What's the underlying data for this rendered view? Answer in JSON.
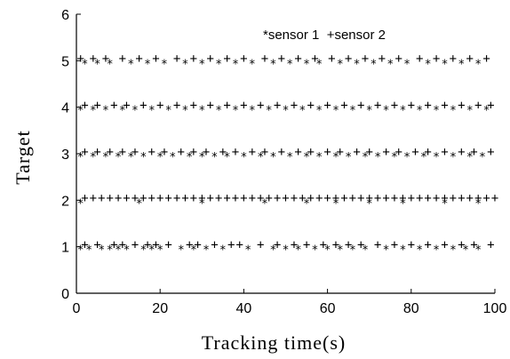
{
  "chart_data": {
    "type": "scatter",
    "xlabel": "Tracking time(s)",
    "ylabel": "Target",
    "xlim": [
      0,
      100
    ],
    "ylim": [
      0,
      6
    ],
    "x_ticks": [
      "0",
      "20",
      "40",
      "60",
      "80",
      "100"
    ],
    "y_ticks": [
      "0",
      "1",
      "2",
      "3",
      "4",
      "5",
      "6"
    ],
    "grid": false,
    "legend_text": "*sensor 1  +sensor 2",
    "legend_position": "top-right",
    "series": [
      {
        "name": "sensor 1",
        "marker": "*",
        "points": [
          [
            1,
            1
          ],
          [
            3,
            1
          ],
          [
            6,
            1
          ],
          [
            8,
            1
          ],
          [
            10,
            1
          ],
          [
            12,
            1
          ],
          [
            16,
            1
          ],
          [
            18,
            1
          ],
          [
            20,
            1
          ],
          [
            25,
            1
          ],
          [
            28,
            1
          ],
          [
            31,
            1
          ],
          [
            35,
            1
          ],
          [
            41,
            1
          ],
          [
            47,
            1
          ],
          [
            50,
            1
          ],
          [
            53,
            1
          ],
          [
            57,
            1
          ],
          [
            60,
            1
          ],
          [
            63,
            1
          ],
          [
            66,
            1
          ],
          [
            69,
            1
          ],
          [
            74,
            1
          ],
          [
            78,
            1
          ],
          [
            82,
            1
          ],
          [
            86,
            1
          ],
          [
            90,
            1
          ],
          [
            93,
            1
          ],
          [
            96,
            1
          ],
          [
            1,
            2
          ],
          [
            15,
            2
          ],
          [
            30,
            2
          ],
          [
            45,
            2
          ],
          [
            55,
            2
          ],
          [
            62,
            2
          ],
          [
            70,
            2
          ],
          [
            78,
            2
          ],
          [
            88,
            2
          ],
          [
            96,
            2
          ],
          [
            1,
            3
          ],
          [
            4,
            3
          ],
          [
            7,
            3
          ],
          [
            10,
            3
          ],
          [
            13,
            3
          ],
          [
            16,
            3
          ],
          [
            20,
            3
          ],
          [
            23,
            3
          ],
          [
            27,
            3
          ],
          [
            30,
            3
          ],
          [
            33,
            3
          ],
          [
            36,
            3
          ],
          [
            40,
            3
          ],
          [
            44,
            3
          ],
          [
            47,
            3
          ],
          [
            51,
            3
          ],
          [
            55,
            3
          ],
          [
            58,
            3
          ],
          [
            62,
            3
          ],
          [
            65,
            3
          ],
          [
            69,
            3
          ],
          [
            72,
            3
          ],
          [
            76,
            3
          ],
          [
            79,
            3
          ],
          [
            83,
            3
          ],
          [
            86,
            3
          ],
          [
            90,
            3
          ],
          [
            94,
            3
          ],
          [
            97,
            3
          ],
          [
            1,
            4
          ],
          [
            4,
            4
          ],
          [
            7,
            4
          ],
          [
            11,
            4
          ],
          [
            14,
            4
          ],
          [
            18,
            4
          ],
          [
            22,
            4
          ],
          [
            26,
            4
          ],
          [
            30,
            4
          ],
          [
            34,
            4
          ],
          [
            38,
            4
          ],
          [
            42,
            4
          ],
          [
            46,
            4
          ],
          [
            50,
            4
          ],
          [
            54,
            4
          ],
          [
            58,
            4
          ],
          [
            62,
            4
          ],
          [
            66,
            4
          ],
          [
            70,
            4
          ],
          [
            74,
            4
          ],
          [
            78,
            4
          ],
          [
            82,
            4
          ],
          [
            86,
            4
          ],
          [
            90,
            4
          ],
          [
            94,
            4
          ],
          [
            98,
            4
          ],
          [
            2,
            5
          ],
          [
            5,
            5
          ],
          [
            8,
            5
          ],
          [
            13,
            5
          ],
          [
            17,
            5
          ],
          [
            21,
            5
          ],
          [
            26,
            5
          ],
          [
            30,
            5
          ],
          [
            34,
            5
          ],
          [
            38,
            5
          ],
          [
            42,
            5
          ],
          [
            47,
            5
          ],
          [
            51,
            5
          ],
          [
            55,
            5
          ],
          [
            58,
            5
          ],
          [
            63,
            5
          ],
          [
            67,
            5
          ],
          [
            71,
            5
          ],
          [
            75,
            5
          ],
          [
            79,
            5
          ],
          [
            84,
            5
          ],
          [
            88,
            5
          ],
          [
            92,
            5
          ],
          [
            96,
            5
          ]
        ]
      },
      {
        "name": "sensor 2",
        "marker": "+",
        "points": [
          [
            2,
            1.05
          ],
          [
            5,
            1.05
          ],
          [
            9,
            1.05
          ],
          [
            11,
            1.05
          ],
          [
            14,
            1.05
          ],
          [
            17,
            1.05
          ],
          [
            19,
            1.05
          ],
          [
            22,
            1.05
          ],
          [
            27,
            1.05
          ],
          [
            29,
            1.05
          ],
          [
            33,
            1.05
          ],
          [
            37,
            1.05
          ],
          [
            39,
            1.05
          ],
          [
            44,
            1.05
          ],
          [
            48,
            1.05
          ],
          [
            52,
            1.05
          ],
          [
            55,
            1.05
          ],
          [
            59,
            1.05
          ],
          [
            62,
            1.05
          ],
          [
            65,
            1.05
          ],
          [
            68,
            1.05
          ],
          [
            72,
            1.05
          ],
          [
            76,
            1.05
          ],
          [
            80,
            1.05
          ],
          [
            84,
            1.05
          ],
          [
            88,
            1.05
          ],
          [
            92,
            1.05
          ],
          [
            95,
            1.05
          ],
          [
            99,
            1.05
          ],
          [
            2,
            2.05
          ],
          [
            4,
            2.05
          ],
          [
            6,
            2.05
          ],
          [
            8,
            2.05
          ],
          [
            10,
            2.05
          ],
          [
            12,
            2.05
          ],
          [
            14,
            2.05
          ],
          [
            16,
            2.05
          ],
          [
            18,
            2.05
          ],
          [
            20,
            2.05
          ],
          [
            22,
            2.05
          ],
          [
            24,
            2.05
          ],
          [
            26,
            2.05
          ],
          [
            28,
            2.05
          ],
          [
            30,
            2.05
          ],
          [
            32,
            2.05
          ],
          [
            34,
            2.05
          ],
          [
            36,
            2.05
          ],
          [
            38,
            2.05
          ],
          [
            40,
            2.05
          ],
          [
            42,
            2.05
          ],
          [
            44,
            2.05
          ],
          [
            46,
            2.05
          ],
          [
            48,
            2.05
          ],
          [
            50,
            2.05
          ],
          [
            52,
            2.05
          ],
          [
            54,
            2.05
          ],
          [
            56,
            2.05
          ],
          [
            58,
            2.05
          ],
          [
            60,
            2.05
          ],
          [
            62,
            2.05
          ],
          [
            64,
            2.05
          ],
          [
            66,
            2.05
          ],
          [
            68,
            2.05
          ],
          [
            70,
            2.05
          ],
          [
            72,
            2.05
          ],
          [
            74,
            2.05
          ],
          [
            76,
            2.05
          ],
          [
            78,
            2.05
          ],
          [
            80,
            2.05
          ],
          [
            82,
            2.05
          ],
          [
            84,
            2.05
          ],
          [
            86,
            2.05
          ],
          [
            88,
            2.05
          ],
          [
            90,
            2.05
          ],
          [
            92,
            2.05
          ],
          [
            94,
            2.05
          ],
          [
            96,
            2.05
          ],
          [
            98,
            2.05
          ],
          [
            100,
            2.05
          ],
          [
            2,
            3.05
          ],
          [
            5,
            3.05
          ],
          [
            8,
            3.05
          ],
          [
            11,
            3.05
          ],
          [
            14,
            3.05
          ],
          [
            18,
            3.05
          ],
          [
            21,
            3.05
          ],
          [
            25,
            3.05
          ],
          [
            28,
            3.05
          ],
          [
            31,
            3.05
          ],
          [
            35,
            3.05
          ],
          [
            38,
            3.05
          ],
          [
            42,
            3.05
          ],
          [
            45,
            3.05
          ],
          [
            49,
            3.05
          ],
          [
            53,
            3.05
          ],
          [
            56,
            3.05
          ],
          [
            60,
            3.05
          ],
          [
            63,
            3.05
          ],
          [
            67,
            3.05
          ],
          [
            70,
            3.05
          ],
          [
            74,
            3.05
          ],
          [
            77,
            3.05
          ],
          [
            81,
            3.05
          ],
          [
            84,
            3.05
          ],
          [
            88,
            3.05
          ],
          [
            92,
            3.05
          ],
          [
            95,
            3.05
          ],
          [
            99,
            3.05
          ],
          [
            2,
            4.05
          ],
          [
            5,
            4.05
          ],
          [
            9,
            4.05
          ],
          [
            12,
            4.05
          ],
          [
            16,
            4.05
          ],
          [
            20,
            4.05
          ],
          [
            24,
            4.05
          ],
          [
            28,
            4.05
          ],
          [
            32,
            4.05
          ],
          [
            36,
            4.05
          ],
          [
            40,
            4.05
          ],
          [
            44,
            4.05
          ],
          [
            48,
            4.05
          ],
          [
            52,
            4.05
          ],
          [
            56,
            4.05
          ],
          [
            60,
            4.05
          ],
          [
            64,
            4.05
          ],
          [
            68,
            4.05
          ],
          [
            72,
            4.05
          ],
          [
            76,
            4.05
          ],
          [
            80,
            4.05
          ],
          [
            84,
            4.05
          ],
          [
            88,
            4.05
          ],
          [
            92,
            4.05
          ],
          [
            96,
            4.05
          ],
          [
            99,
            4.05
          ],
          [
            1,
            5.05
          ],
          [
            4,
            5.05
          ],
          [
            7,
            5.05
          ],
          [
            11,
            5.05
          ],
          [
            15,
            5.05
          ],
          [
            19,
            5.05
          ],
          [
            24,
            5.05
          ],
          [
            28,
            5.05
          ],
          [
            32,
            5.05
          ],
          [
            36,
            5.05
          ],
          [
            40,
            5.05
          ],
          [
            45,
            5.05
          ],
          [
            49,
            5.05
          ],
          [
            53,
            5.05
          ],
          [
            57,
            5.05
          ],
          [
            61,
            5.05
          ],
          [
            65,
            5.05
          ],
          [
            69,
            5.05
          ],
          [
            73,
            5.05
          ],
          [
            77,
            5.05
          ],
          [
            82,
            5.05
          ],
          [
            86,
            5.05
          ],
          [
            90,
            5.05
          ],
          [
            94,
            5.05
          ],
          [
            98,
            5.05
          ]
        ]
      }
    ]
  }
}
